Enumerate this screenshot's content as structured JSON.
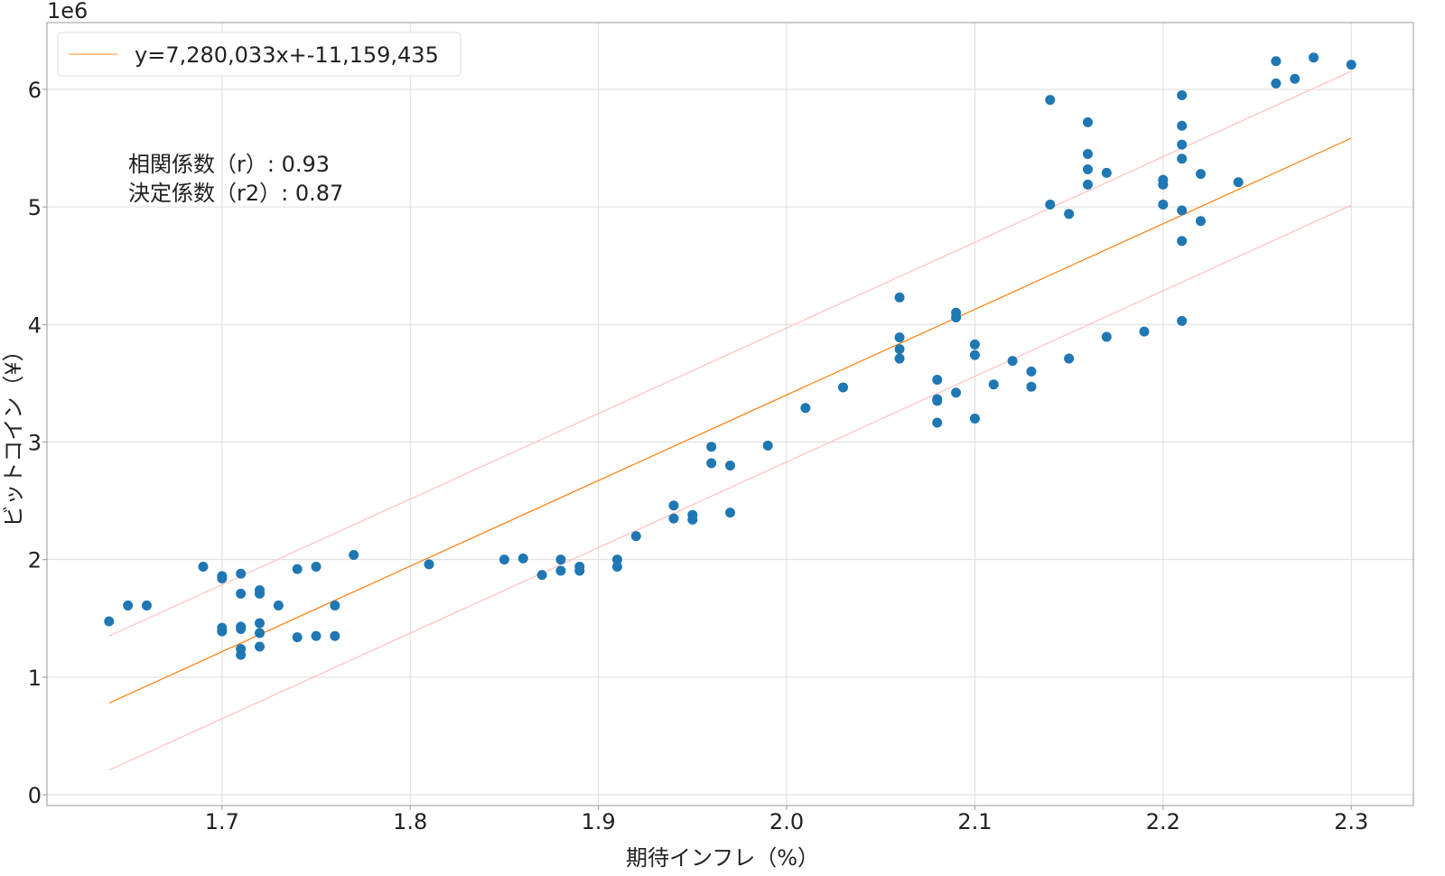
{
  "chart_data": {
    "type": "scatter",
    "title": "",
    "xlabel": "期待インフレ（%）",
    "ylabel": "ビットコイン（¥）",
    "y_offset_label": "1e6",
    "y_unit_multiplier": 1000000,
    "xlim": [
      1.607,
      2.333
    ],
    "ylim": [
      -0.092,
      6.568
    ],
    "xticks": [
      1.7,
      1.8,
      1.9,
      2.0,
      2.1,
      2.2,
      2.3
    ],
    "xtick_labels": [
      "1.7",
      "1.8",
      "1.9",
      "2.0",
      "2.1",
      "2.2",
      "2.3"
    ],
    "yticks": [
      0,
      1,
      2,
      3,
      4,
      5,
      6
    ],
    "ytick_labels": [
      "0",
      "1",
      "2",
      "3",
      "4",
      "5",
      "6"
    ],
    "grid": true,
    "legend": {
      "position": "top-left",
      "entries": [
        "y=7,280,033x+-11,159,435"
      ]
    },
    "annotations": [
      "相関係数（r）: 0.93",
      "決定係数（r2）: 0.87"
    ],
    "fit": {
      "slope": 7280033,
      "intercept": -11159435,
      "x_range": [
        1.64,
        2.3
      ],
      "band_offset_millions": 0.57
    },
    "colors": {
      "points": "#1f77b4",
      "fit": "#ff7f0e",
      "band": "#ffc0c0",
      "grid": "#dddddd"
    },
    "points": [
      [
        1.64,
        1.475
      ],
      [
        1.65,
        1.61
      ],
      [
        1.66,
        1.61
      ],
      [
        1.69,
        1.94
      ],
      [
        1.7,
        1.86
      ],
      [
        1.7,
        1.84
      ],
      [
        1.7,
        1.42
      ],
      [
        1.7,
        1.39
      ],
      [
        1.71,
        1.88
      ],
      [
        1.71,
        1.71
      ],
      [
        1.71,
        1.43
      ],
      [
        1.71,
        1.41
      ],
      [
        1.71,
        1.24
      ],
      [
        1.71,
        1.19
      ],
      [
        1.72,
        1.74
      ],
      [
        1.72,
        1.71
      ],
      [
        1.72,
        1.46
      ],
      [
        1.72,
        1.375
      ],
      [
        1.72,
        1.26
      ],
      [
        1.73,
        1.61
      ],
      [
        1.74,
        1.92
      ],
      [
        1.74,
        1.34
      ],
      [
        1.75,
        1.94
      ],
      [
        1.75,
        1.35
      ],
      [
        1.76,
        1.61
      ],
      [
        1.76,
        1.35
      ],
      [
        1.77,
        2.04
      ],
      [
        1.81,
        1.96
      ],
      [
        1.85,
        2.0
      ],
      [
        1.86,
        2.01
      ],
      [
        1.87,
        1.87
      ],
      [
        1.88,
        2.0
      ],
      [
        1.88,
        1.905
      ],
      [
        1.89,
        1.94
      ],
      [
        1.89,
        1.905
      ],
      [
        1.91,
        2.0
      ],
      [
        1.91,
        1.94
      ],
      [
        1.92,
        2.2
      ],
      [
        1.94,
        2.46
      ],
      [
        1.94,
        2.35
      ],
      [
        1.95,
        2.38
      ],
      [
        1.95,
        2.34
      ],
      [
        1.96,
        2.96
      ],
      [
        1.96,
        2.82
      ],
      [
        1.97,
        2.8
      ],
      [
        1.97,
        2.4
      ],
      [
        1.99,
        2.97
      ],
      [
        2.01,
        3.29
      ],
      [
        2.03,
        3.465
      ],
      [
        2.06,
        4.23
      ],
      [
        2.06,
        3.89
      ],
      [
        2.06,
        3.79
      ],
      [
        2.06,
        3.71
      ],
      [
        2.08,
        3.53
      ],
      [
        2.08,
        3.365
      ],
      [
        2.08,
        3.35
      ],
      [
        2.08,
        3.165
      ],
      [
        2.09,
        4.1
      ],
      [
        2.09,
        4.06
      ],
      [
        2.09,
        3.42
      ],
      [
        2.1,
        3.83
      ],
      [
        2.1,
        3.74
      ],
      [
        2.1,
        3.2
      ],
      [
        2.11,
        3.49
      ],
      [
        2.12,
        3.69
      ],
      [
        2.13,
        3.6
      ],
      [
        2.13,
        3.47
      ],
      [
        2.14,
        5.91
      ],
      [
        2.14,
        5.02
      ],
      [
        2.15,
        4.94
      ],
      [
        2.15,
        3.71
      ],
      [
        2.16,
        5.72
      ],
      [
        2.16,
        5.45
      ],
      [
        2.16,
        5.32
      ],
      [
        2.16,
        5.19
      ],
      [
        2.17,
        5.29
      ],
      [
        2.17,
        3.895
      ],
      [
        2.19,
        3.94
      ],
      [
        2.2,
        5.23
      ],
      [
        2.2,
        5.19
      ],
      [
        2.2,
        5.02
      ],
      [
        2.21,
        5.95
      ],
      [
        2.21,
        5.69
      ],
      [
        2.21,
        5.53
      ],
      [
        2.21,
        5.41
      ],
      [
        2.21,
        4.97
      ],
      [
        2.21,
        4.71
      ],
      [
        2.21,
        4.03
      ],
      [
        2.22,
        5.28
      ],
      [
        2.22,
        4.88
      ],
      [
        2.24,
        5.21
      ],
      [
        2.26,
        6.24
      ],
      [
        2.26,
        6.05
      ],
      [
        2.27,
        6.09
      ],
      [
        2.28,
        6.27
      ],
      [
        2.3,
        6.21
      ]
    ]
  }
}
